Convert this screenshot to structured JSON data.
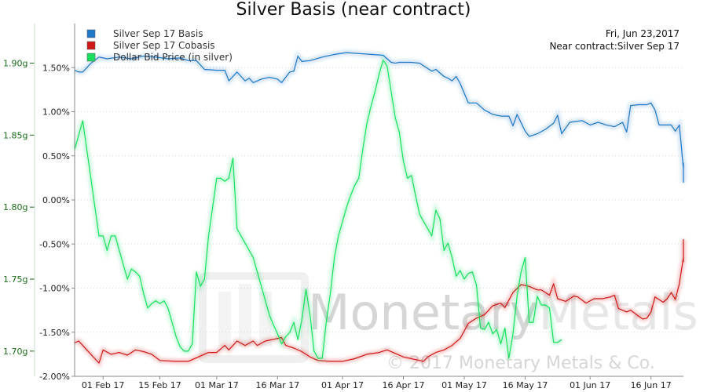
{
  "chart_data": {
    "type": "line",
    "title": "Silver Basis (near contract)",
    "info": {
      "date": "Fri, Jun 23,2017",
      "contract": "Near contract:Silver Sep 17"
    },
    "watermark": {
      "brand": "MonetaryMetals",
      "brand_part1": "Monetary",
      "brand_part2": "Metals",
      "registered": "®",
      "copyright": "© 2017 Monetary Metals & Co."
    },
    "x_tick_labels": [
      "01 Feb 17",
      "15 Feb 17",
      "01 Mar 17",
      "16 Mar 17",
      "01 Apr 17",
      "16 Apr 17",
      "01 May 17",
      "16 May 17",
      "01 Jun 17",
      "16 Jun 17"
    ],
    "x_ticks_day": [
      32,
      46,
      60,
      75,
      91,
      106,
      121,
      136,
      152,
      167
    ],
    "x_range_day": [
      25,
      175
    ],
    "y_left": {
      "range": [
        -2.0,
        2.0
      ],
      "ticks": [
        -2.0,
        -1.5,
        -1.0,
        -0.5,
        0.0,
        0.5,
        1.0,
        1.5
      ],
      "tick_labels": [
        "-2.00%",
        "-1.50%",
        "-1.00%",
        "-0.50%",
        "0.00%",
        "0.50%",
        "1.00%",
        "1.50%"
      ],
      "unit": "%"
    },
    "y_right": {
      "range": [
        1.6825,
        1.9275
      ],
      "ticks": [
        1.7,
        1.75,
        1.8,
        1.85,
        1.9
      ],
      "tick_labels": [
        "1.70g",
        "1.75g",
        "1.80g",
        "1.85g",
        "1.90g"
      ],
      "unit": "g"
    },
    "series": [
      {
        "name": "Silver Sep 17 Basis",
        "color": "#1f78c8",
        "axis": "left",
        "points": [
          [
            25,
            1.47
          ],
          [
            26,
            1.45
          ],
          [
            27,
            1.45
          ],
          [
            28,
            1.5
          ],
          [
            29,
            1.55
          ],
          [
            31,
            1.62
          ],
          [
            33,
            1.6
          ],
          [
            36,
            1.62
          ],
          [
            39,
            1.6
          ],
          [
            42,
            1.63
          ],
          [
            45,
            1.62
          ],
          [
            48,
            1.6
          ],
          [
            51,
            1.61
          ],
          [
            53,
            1.58
          ],
          [
            55,
            1.58
          ],
          [
            57,
            1.48
          ],
          [
            60,
            1.47
          ],
          [
            62,
            1.47
          ],
          [
            63,
            1.35
          ],
          [
            65,
            1.45
          ],
          [
            67,
            1.35
          ],
          [
            68,
            1.38
          ],
          [
            69,
            1.33
          ],
          [
            71,
            1.37
          ],
          [
            73,
            1.39
          ],
          [
            75,
            1.37
          ],
          [
            76,
            1.33
          ],
          [
            78,
            1.45
          ],
          [
            79,
            1.46
          ],
          [
            80,
            1.63
          ],
          [
            81,
            1.57
          ],
          [
            83,
            1.58
          ],
          [
            86,
            1.62
          ],
          [
            89,
            1.65
          ],
          [
            92,
            1.67
          ],
          [
            95,
            1.66
          ],
          [
            98,
            1.65
          ],
          [
            101,
            1.64
          ],
          [
            103,
            1.56
          ],
          [
            104,
            1.55
          ],
          [
            105,
            1.56
          ],
          [
            108,
            1.56
          ],
          [
            110,
            1.55
          ],
          [
            112,
            1.49
          ],
          [
            113,
            1.46
          ],
          [
            114,
            1.48
          ],
          [
            116,
            1.4
          ],
          [
            117,
            1.38
          ],
          [
            118,
            1.35
          ],
          [
            119,
            1.4
          ],
          [
            120,
            1.32
          ],
          [
            122,
            1.1
          ],
          [
            124,
            1.1
          ],
          [
            126,
            1.02
          ],
          [
            128,
            0.97
          ],
          [
            130,
            0.95
          ],
          [
            132,
            0.95
          ],
          [
            133,
            0.84
          ],
          [
            134,
            0.97
          ],
          [
            136,
            0.78
          ],
          [
            137,
            0.72
          ],
          [
            139,
            0.75
          ],
          [
            141,
            0.8
          ],
          [
            143,
            0.87
          ],
          [
            144,
            0.96
          ],
          [
            145,
            0.75
          ],
          [
            147,
            0.88
          ],
          [
            150,
            0.9
          ],
          [
            152,
            0.85
          ],
          [
            154,
            0.88
          ],
          [
            156,
            0.85
          ],
          [
            158,
            0.83
          ],
          [
            160,
            0.88
          ],
          [
            161,
            0.77
          ],
          [
            162,
            1.07
          ],
          [
            164,
            1.08
          ],
          [
            166,
            1.08
          ],
          [
            167,
            1.1
          ],
          [
            168,
            1.02
          ],
          [
            169,
            0.85
          ],
          [
            172,
            0.85
          ],
          [
            173,
            0.78
          ],
          [
            174,
            0.85
          ],
          [
            175,
            0.35
          ],
          [
            176,
            0.42
          ],
          [
            178,
            0.4
          ],
          [
            179,
            0.2
          ],
          [
            180,
            0.23
          ],
          [
            182,
            0.32
          ]
        ]
      },
      {
        "name": "Silver Sep 17 Cobasis",
        "color": "#d01818",
        "axis": "left",
        "points": [
          [
            25,
            -1.62
          ],
          [
            26,
            -1.6
          ],
          [
            28,
            -1.7
          ],
          [
            30,
            -1.8
          ],
          [
            31,
            -1.85
          ],
          [
            32,
            -1.7
          ],
          [
            34,
            -1.75
          ],
          [
            36,
            -1.73
          ],
          [
            38,
            -1.76
          ],
          [
            40,
            -1.7
          ],
          [
            42,
            -1.72
          ],
          [
            44,
            -1.75
          ],
          [
            46,
            -1.82
          ],
          [
            50,
            -1.83
          ],
          [
            53,
            -1.83
          ],
          [
            56,
            -1.77
          ],
          [
            58,
            -1.73
          ],
          [
            60,
            -1.73
          ],
          [
            62,
            -1.65
          ],
          [
            63,
            -1.7
          ],
          [
            65,
            -1.6
          ],
          [
            67,
            -1.65
          ],
          [
            69,
            -1.6
          ],
          [
            70,
            -1.65
          ],
          [
            72,
            -1.6
          ],
          [
            74,
            -1.58
          ],
          [
            76,
            -1.56
          ],
          [
            77,
            -1.65
          ],
          [
            79,
            -1.68
          ],
          [
            81,
            -1.72
          ],
          [
            83,
            -1.78
          ],
          [
            85,
            -1.82
          ],
          [
            88,
            -1.83
          ],
          [
            91,
            -1.83
          ],
          [
            94,
            -1.8
          ],
          [
            97,
            -1.75
          ],
          [
            100,
            -1.73
          ],
          [
            102,
            -1.7
          ],
          [
            104,
            -1.74
          ],
          [
            106,
            -1.78
          ],
          [
            108,
            -1.8
          ],
          [
            110,
            -1.82
          ],
          [
            111,
            -1.83
          ],
          [
            112,
            -1.78
          ],
          [
            114,
            -1.73
          ],
          [
            116,
            -1.7
          ],
          [
            118,
            -1.65
          ],
          [
            120,
            -1.57
          ],
          [
            122,
            -1.4
          ],
          [
            124,
            -1.34
          ],
          [
            126,
            -1.3
          ],
          [
            128,
            -1.2
          ],
          [
            130,
            -1.17
          ],
          [
            131,
            -1.22
          ],
          [
            133,
            -1.05
          ],
          [
            135,
            -0.96
          ],
          [
            137,
            -0.98
          ],
          [
            139,
            -1.02
          ],
          [
            140,
            -1.02
          ],
          [
            142,
            -1.08
          ],
          [
            143,
            -0.95
          ],
          [
            144,
            -1.12
          ],
          [
            146,
            -1.15
          ],
          [
            148,
            -1.09
          ],
          [
            149,
            -1.1
          ],
          [
            151,
            -1.17
          ],
          [
            153,
            -1.12
          ],
          [
            155,
            -1.12
          ],
          [
            157,
            -1.1
          ],
          [
            158,
            -1.08
          ],
          [
            159,
            -1.23
          ],
          [
            161,
            -1.27
          ],
          [
            162,
            -1.25
          ],
          [
            164,
            -1.32
          ],
          [
            165,
            -1.35
          ],
          [
            166,
            -1.34
          ],
          [
            167,
            -1.27
          ],
          [
            168,
            -1.1
          ],
          [
            169,
            -1.13
          ],
          [
            170,
            -1.16
          ],
          [
            171,
            -1.12
          ],
          [
            172,
            -1.05
          ],
          [
            173,
            -1.13
          ],
          [
            174,
            -0.95
          ],
          [
            175,
            -0.65
          ],
          [
            176,
            -0.62
          ],
          [
            178,
            -0.7
          ],
          [
            179,
            -0.5
          ],
          [
            180,
            -0.45
          ],
          [
            182,
            -0.6
          ]
        ]
      },
      {
        "name": "Dollar Bid Price (in silver)",
        "color": "#19e05c",
        "axis": "right",
        "points": [
          [
            25,
            1.84
          ],
          [
            26,
            1.85
          ],
          [
            27,
            1.86
          ],
          [
            28,
            1.84
          ],
          [
            29,
            1.82
          ],
          [
            30,
            1.8
          ],
          [
            31,
            1.78
          ],
          [
            32,
            1.78
          ],
          [
            33,
            1.77
          ],
          [
            34,
            1.78
          ],
          [
            35,
            1.78
          ],
          [
            36,
            1.77
          ],
          [
            37,
            1.76
          ],
          [
            38,
            1.75
          ],
          [
            39,
            1.757
          ],
          [
            40,
            1.755
          ],
          [
            41,
            1.752
          ],
          [
            42,
            1.74
          ],
          [
            43,
            1.73
          ],
          [
            44,
            1.733
          ],
          [
            45,
            1.735
          ],
          [
            46,
            1.733
          ],
          [
            47,
            1.735
          ],
          [
            48,
            1.73
          ],
          [
            49,
            1.72
          ],
          [
            50,
            1.71
          ],
          [
            51,
            1.703
          ],
          [
            52,
            1.7
          ],
          [
            53,
            1.7
          ],
          [
            54,
            1.705
          ],
          [
            55,
            1.755
          ],
          [
            56,
            1.745
          ],
          [
            57,
            1.75
          ],
          [
            58,
            1.78
          ],
          [
            59,
            1.8
          ],
          [
            60,
            1.82
          ],
          [
            61,
            1.82
          ],
          [
            62,
            1.818
          ],
          [
            63,
            1.82
          ],
          [
            64,
            1.834
          ],
          [
            65,
            1.785
          ],
          [
            66,
            1.78
          ],
          [
            67,
            1.775
          ],
          [
            68,
            1.77
          ],
          [
            69,
            1.765
          ],
          [
            70,
            1.755
          ],
          [
            71,
            1.745
          ],
          [
            72,
            1.735
          ],
          [
            73,
            1.725
          ],
          [
            74,
            1.718
          ],
          [
            75,
            1.712
          ],
          [
            76,
            1.705
          ],
          [
            77,
            1.71
          ],
          [
            78,
            1.713
          ],
          [
            79,
            1.72
          ],
          [
            80,
            1.708
          ],
          [
            81,
            1.722
          ],
          [
            82,
            1.743
          ],
          [
            83,
            1.725
          ],
          [
            84,
            1.7
          ],
          [
            85,
            1.695
          ],
          [
            86,
            1.695
          ],
          [
            87,
            1.72
          ],
          [
            88,
            1.74
          ],
          [
            89,
            1.765
          ],
          [
            90,
            1.78
          ],
          [
            91,
            1.79
          ],
          [
            92,
            1.8
          ],
          [
            93,
            1.808
          ],
          [
            94,
            1.815
          ],
          [
            95,
            1.82
          ],
          [
            96,
            1.84
          ],
          [
            97,
            1.858
          ],
          [
            98,
            1.87
          ],
          [
            99,
            1.88
          ],
          [
            100,
            1.892
          ],
          [
            101,
            1.902
          ],
          [
            102,
            1.898
          ],
          [
            103,
            1.88
          ],
          [
            104,
            1.862
          ],
          [
            105,
            1.852
          ],
          [
            106,
            1.832
          ],
          [
            107,
            1.82
          ],
          [
            108,
            1.822
          ],
          [
            109,
            1.808
          ],
          [
            110,
            1.795
          ],
          [
            111,
            1.79
          ],
          [
            112,
            1.785
          ],
          [
            113,
            1.78
          ],
          [
            114,
            1.798
          ],
          [
            115,
            1.792
          ],
          [
            116,
            1.77
          ],
          [
            117,
            1.775
          ],
          [
            118,
            1.765
          ],
          [
            119,
            1.752
          ],
          [
            120,
            1.756
          ],
          [
            121,
            1.75
          ],
          [
            122,
            1.754
          ],
          [
            123,
            1.755
          ],
          [
            124,
            1.746
          ],
          [
            125,
            1.716
          ],
          [
            126,
            1.715
          ],
          [
            127,
            1.72
          ],
          [
            128,
            1.712
          ],
          [
            129,
            1.715
          ],
          [
            130,
            1.705
          ],
          [
            131,
            1.716
          ],
          [
            132,
            1.695
          ],
          [
            133,
            1.712
          ],
          [
            134,
            1.738
          ],
          [
            135,
            1.755
          ],
          [
            136,
            1.765
          ],
          [
            137,
            1.72
          ],
          [
            138,
            1.72
          ],
          [
            139,
            1.738
          ],
          [
            140,
            1.732
          ],
          [
            141,
            1.732
          ],
          [
            142,
            1.73
          ],
          [
            143,
            1.706
          ],
          [
            144,
            1.706
          ],
          [
            145,
            1.708
          ]
        ]
      }
    ]
  }
}
